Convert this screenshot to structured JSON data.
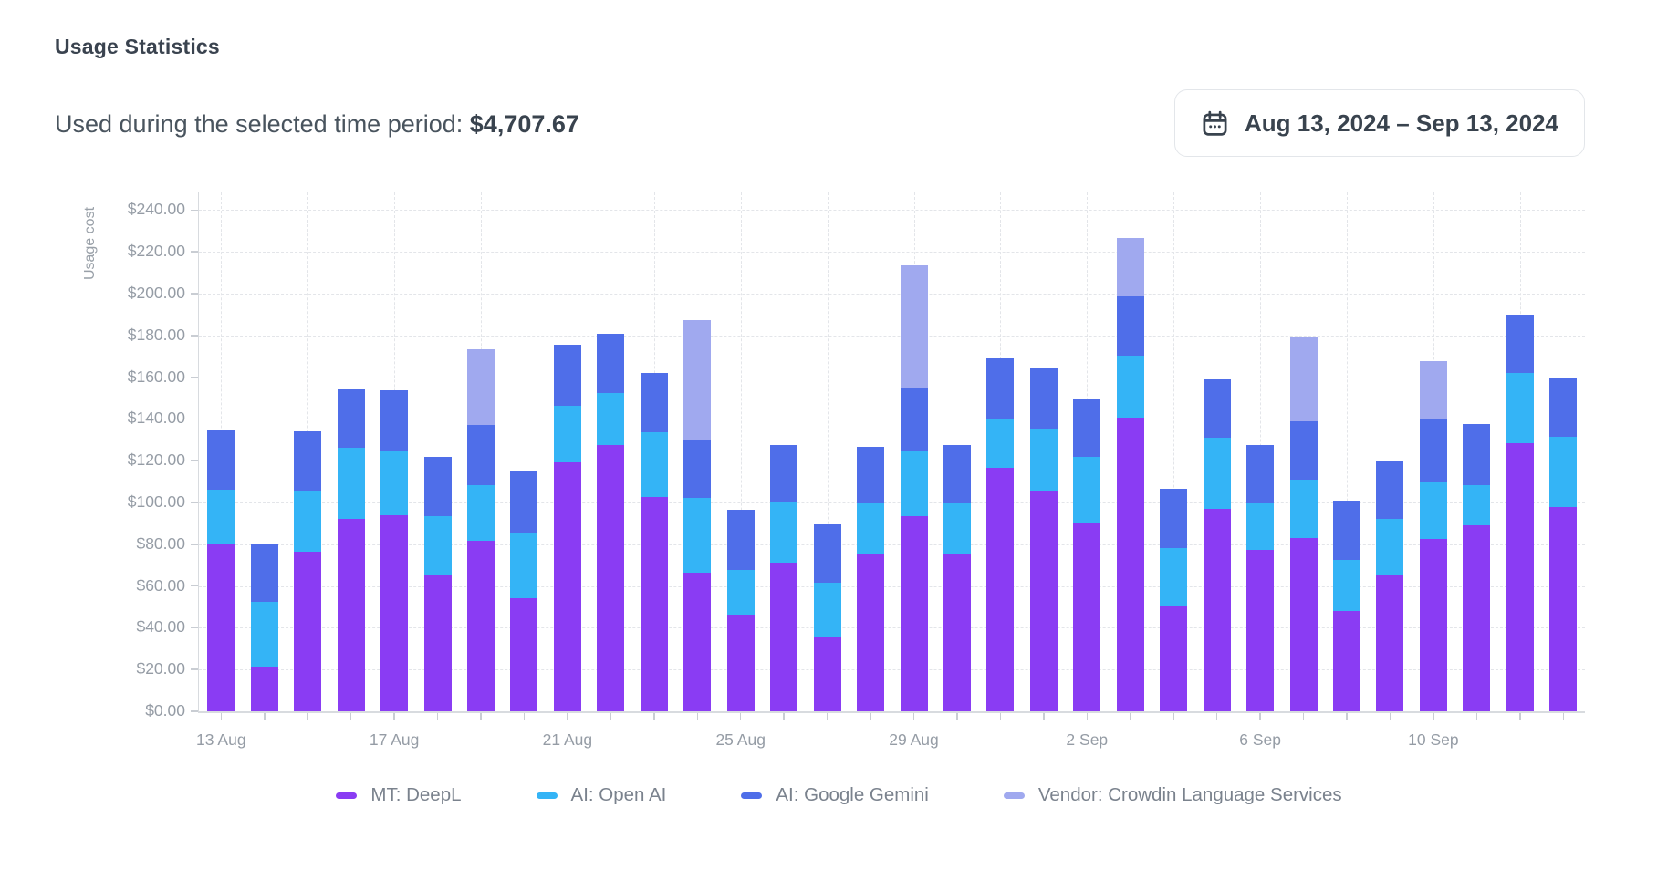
{
  "header": {
    "title": "Usage Statistics",
    "subtitle_label": "Used during the selected time period:",
    "subtitle_value": "$4,707.67"
  },
  "date_range": {
    "label": "Aug 13, 2024 – Sep 13, 2024",
    "icon": "calendar-icon"
  },
  "colors": {
    "deepl_purple": "#8A3CF3",
    "openai_cyan": "#34B4F6",
    "gemini_blue": "#4F6EE9",
    "vendor_lavender": "#A0A9EF",
    "axis_line": "#d8dbdf",
    "gridline": "#e3e5e9",
    "tick": "#c9cdd3",
    "tick_label": "#959ca5",
    "legend_text": "#7a828d",
    "dark_text": "#39434e"
  },
  "chart_data": {
    "type": "bar",
    "stacked": true,
    "title": "Usage Statistics",
    "xlabel": "",
    "ylabel": "Usage cost",
    "ylim": [
      0,
      240
    ],
    "ytick_step": 20,
    "grid": true,
    "legend_position": "bottom",
    "ytick_labels": [
      "$0.00",
      "$20.00",
      "$40.00",
      "$60.00",
      "$80.00",
      "$100.00",
      "$120.00",
      "$140.00",
      "$160.00",
      "$180.00",
      "$200.00",
      "$220.00",
      "$240.00"
    ],
    "categories": [
      "13 Aug",
      "14 Aug",
      "15 Aug",
      "16 Aug",
      "17 Aug",
      "18 Aug",
      "19 Aug",
      "20 Aug",
      "21 Aug",
      "22 Aug",
      "23 Aug",
      "24 Aug",
      "25 Aug",
      "26 Aug",
      "27 Aug",
      "28 Aug",
      "29 Aug",
      "30 Aug",
      "31 Aug",
      "1 Sep",
      "2 Sep",
      "3 Sep",
      "4 Sep",
      "5 Sep",
      "6 Sep",
      "7 Sep",
      "8 Sep",
      "9 Sep",
      "10 Sep",
      "11 Sep",
      "12 Sep",
      "13 Sep"
    ],
    "xtick_labels": [
      "13 Aug",
      "17 Aug",
      "21 Aug",
      "25 Aug",
      "29 Aug",
      "2 Sep",
      "6 Sep",
      "10 Sep"
    ],
    "xtick_indices": [
      0,
      4,
      8,
      12,
      16,
      20,
      24,
      28
    ],
    "total_label": "$4,707.67",
    "series": [
      {
        "name": "MT: DeepL",
        "color": "#8A3CF3",
        "values": [
          80.5,
          21.5,
          76.5,
          92,
          94,
          65,
          81.5,
          54,
          119,
          127.5,
          102.5,
          66.5,
          46.5,
          71,
          35.5,
          75.5,
          93.5,
          75,
          116.5,
          105.5,
          90,
          140.5,
          50.5,
          97,
          77.5,
          83,
          48,
          65,
          82.5,
          89,
          128.5,
          98
        ]
      },
      {
        "name": "AI: Open AI",
        "color": "#34B4F6",
        "values": [
          25.5,
          31,
          29,
          34,
          30.5,
          28.5,
          27,
          31.5,
          27.5,
          25,
          31,
          35.5,
          21,
          29,
          26,
          24,
          31.5,
          24.5,
          23.5,
          30,
          32,
          30,
          27.5,
          34,
          22,
          28,
          24.5,
          27,
          27.5,
          19.5,
          33.5,
          33.5
        ]
      },
      {
        "name": "AI: Google Gemini",
        "color": "#4F6EE9",
        "values": [
          28.5,
          28,
          28.5,
          28,
          29,
          28.5,
          28.5,
          30,
          29,
          28.5,
          28.5,
          28,
          29,
          27.5,
          28,
          27,
          29.5,
          28,
          29,
          28.5,
          27.5,
          28,
          28.5,
          28,
          28,
          28,
          28.5,
          28,
          30,
          29,
          28,
          28
        ]
      },
      {
        "name": "Vendor: Crowdin Language Services",
        "color": "#A0A9EF",
        "values": [
          0,
          0,
          0,
          0,
          0,
          0,
          36.5,
          0,
          0,
          0,
          0,
          57.5,
          0,
          0,
          0,
          0,
          59,
          0,
          0,
          0,
          0,
          28,
          0,
          0,
          0,
          40.5,
          0,
          0,
          27.5,
          0,
          0,
          0
        ]
      }
    ]
  }
}
